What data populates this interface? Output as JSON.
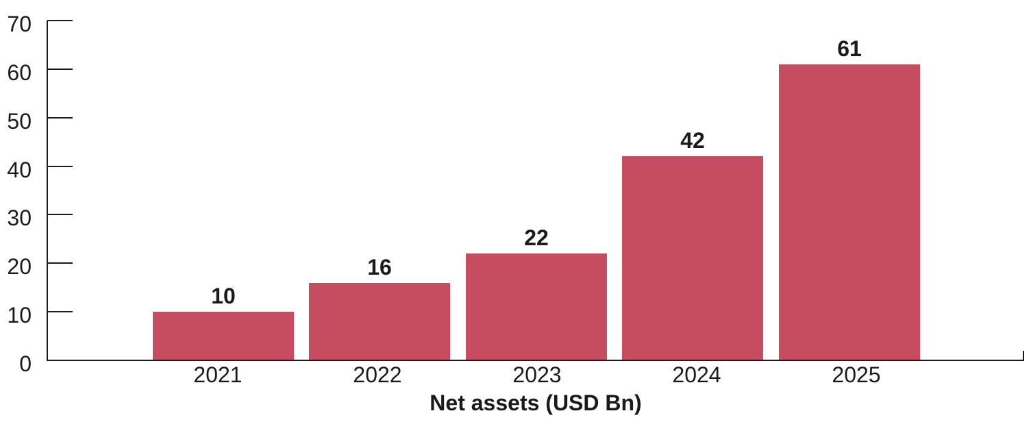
{
  "chart_data": {
    "type": "bar",
    "title": "",
    "xlabel": "Net assets (USD Bn)",
    "ylabel": "",
    "categories": [
      "2021",
      "2022",
      "2023",
      "2024",
      "2025"
    ],
    "values": [
      10,
      16,
      22,
      42,
      61
    ],
    "bar_labels": [
      "10",
      "16",
      "22",
      "42",
      "61"
    ],
    "yticks": [
      0,
      10,
      20,
      30,
      40,
      50,
      60,
      70
    ],
    "ytick_labels": [
      "0",
      "10",
      "20",
      "30",
      "40",
      "50",
      "60",
      "70"
    ],
    "ylim": [
      0,
      70
    ],
    "grid": "off",
    "legend": "none",
    "colors": {
      "bar": "#C64C5F",
      "axis": "#1A1A1A",
      "text": "#1A1A1A",
      "background": "#FFFFFF"
    }
  }
}
